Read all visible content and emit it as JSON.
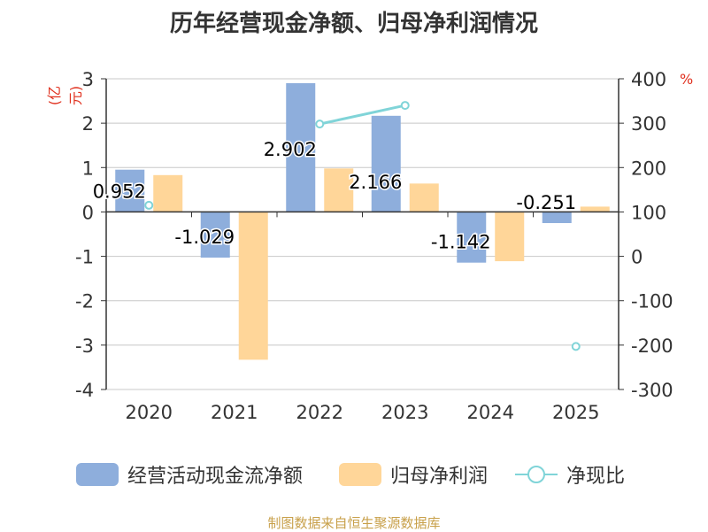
{
  "title": "历年经营现金净额、归母净利润情况",
  "source": "制图数据来自恒生聚源数据库",
  "chart_data": {
    "type": "bar",
    "categories": [
      "2020",
      "2021",
      "2022",
      "2023",
      "2024",
      "2025"
    ],
    "left_axis": {
      "unit": "(亿元)",
      "ylim": [
        -4,
        3
      ],
      "ticks": [
        3,
        2,
        1,
        0,
        -1,
        -2,
        -3,
        -4
      ]
    },
    "right_axis": {
      "unit": "%",
      "ylim": [
        -300,
        400
      ],
      "ticks": [
        400,
        300,
        200,
        100,
        0,
        -100,
        -200,
        -300
      ]
    },
    "grid": true,
    "legend_position": "bottom",
    "series": [
      {
        "name": "经营活动现金流净额",
        "type": "bar",
        "axis": "left",
        "color": "#8eaedc",
        "values": [
          0.952,
          -1.029,
          2.902,
          2.166,
          -1.142,
          -0.251
        ],
        "labels": [
          "0.952",
          "-1.029",
          "2.902",
          "2.166",
          "-1.142",
          "-0.251"
        ]
      },
      {
        "name": "归母净利润",
        "type": "bar",
        "axis": "left",
        "color": "#ffd699",
        "values": [
          0.83,
          -3.33,
          0.98,
          0.64,
          -1.11,
          0.12
        ]
      },
      {
        "name": "净现比",
        "type": "line",
        "axis": "right",
        "color": "#80d4d8",
        "values": [
          115,
          null,
          298,
          340,
          null,
          -203
        ]
      }
    ]
  }
}
